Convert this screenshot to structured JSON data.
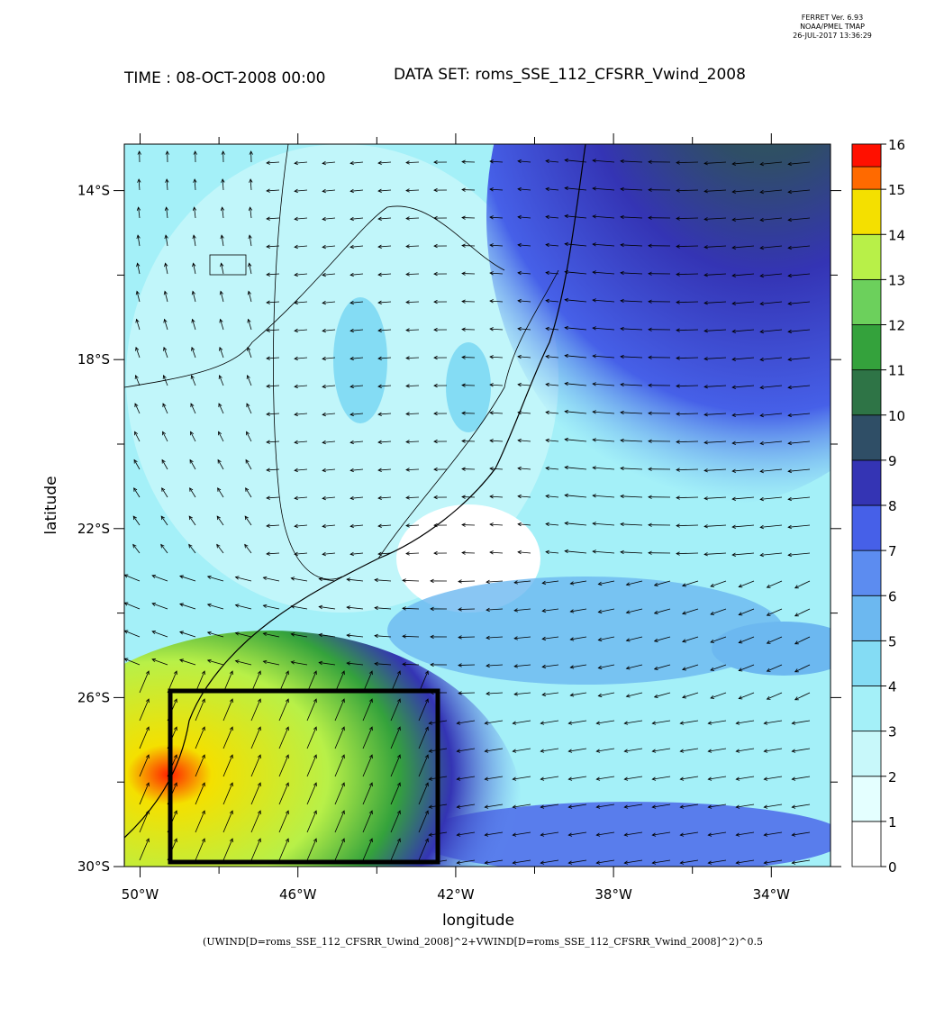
{
  "header": {
    "version": "FERRET Ver. 6.93",
    "org": "NOAA/PMEL TMAP",
    "date": "26-JUL-2017 13:36:29"
  },
  "title": {
    "time": "TIME : 08-OCT-2008 00:00",
    "dataset": "DATA SET: roms_SSE_112_CFSRR_Vwind_2008"
  },
  "map": {
    "x_label": "longitude",
    "y_label": "latitude",
    "lonlim": [
      -50.4,
      -32.5
    ],
    "latlim": [
      -30,
      -12.9
    ],
    "lon_ticks": [
      {
        "value": -50,
        "label": "50°W"
      },
      {
        "value": -46,
        "label": "46°W"
      },
      {
        "value": -42,
        "label": "42°W"
      },
      {
        "value": -38,
        "label": "38°W"
      },
      {
        "value": -34,
        "label": "34°W"
      }
    ],
    "lon_minor": [
      -48,
      -44,
      -40,
      -36
    ],
    "lat_ticks": [
      {
        "value": -14,
        "label": "14°S"
      },
      {
        "value": -18,
        "label": "18°S"
      },
      {
        "value": -22,
        "label": "22°S"
      },
      {
        "value": -26,
        "label": "26°S"
      },
      {
        "value": -30,
        "label": "30°S"
      }
    ],
    "lat_minor": [
      -16,
      -20,
      -24,
      -28
    ]
  },
  "colorbar": {
    "levels": [
      0,
      1,
      2,
      3,
      4,
      5,
      6,
      7,
      8,
      9,
      10,
      11,
      12,
      13,
      14,
      15,
      16
    ],
    "colors": [
      "#ffffff",
      "#e4ffff",
      "#c8f8fa",
      "#a4f0f8",
      "#84dcf4",
      "#6cb8f0",
      "#5c8cf0",
      "#4660e8",
      "#3434b4",
      "#2f4e66",
      "#2e7446",
      "#34a23c",
      "#6cd05c",
      "#b8f048",
      "#f4e000",
      "#ff6a00"
    ],
    "top_color": "#ff1000"
  },
  "footer": "(UWIND[D=roms_SSE_112_CFSRR_Uwind_2008]^2+VWIND[D=roms_SSE_112_CFSRR_Vwind_2008]^2)^0.5"
}
